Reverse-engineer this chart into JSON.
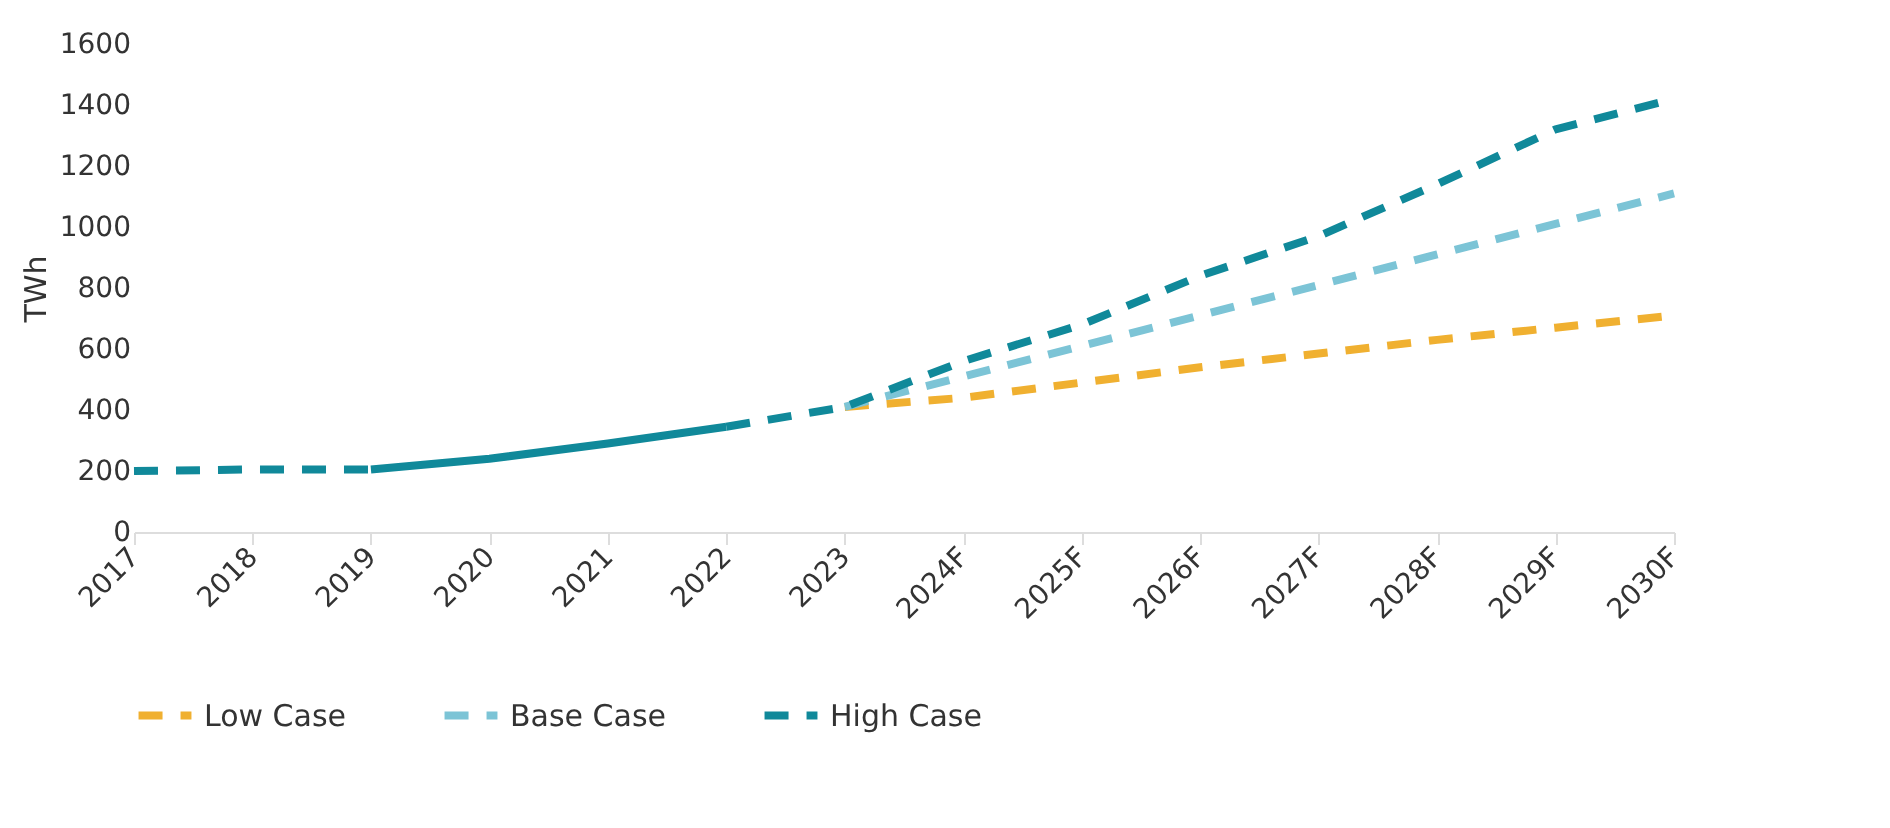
{
  "chart_data": {
    "type": "line",
    "ylabel": "TWh",
    "categories": [
      "2017",
      "2018",
      "2019",
      "2020",
      "2021",
      "2022",
      "2023",
      "2024F",
      "2025F",
      "2026F",
      "2027F",
      "2028F",
      "2029F",
      "2030F"
    ],
    "ylim": [
      0,
      1600
    ],
    "yticks": [
      0,
      200,
      400,
      600,
      800,
      1000,
      1200,
      1400,
      1600
    ],
    "grid": false,
    "legend": "bottom",
    "marker": "none",
    "series": [
      {
        "color": "#10899a",
        "line_style": "solid",
        "values": [
          null,
          null,
          205,
          240,
          290,
          345,
          null,
          null,
          null,
          null,
          null,
          null,
          null,
          null
        ]
      },
      {
        "name": "Low Case",
        "color": "#f0b030",
        "line_style": "dashed",
        "values": [
          null,
          null,
          null,
          null,
          null,
          null,
          410,
          440,
          490,
          540,
          585,
          630,
          670,
          710
        ]
      },
      {
        "name": "Base Case",
        "color": "#7cc4d6",
        "line_style": "dashed",
        "values": [
          null,
          null,
          null,
          null,
          null,
          null,
          410,
          510,
          610,
          710,
          810,
          910,
          1010,
          1110
        ]
      },
      {
        "name": "High Case",
        "color": "#10899a",
        "line_style": "dashed",
        "values": [
          200,
          205,
          205,
          null,
          null,
          345,
          410,
          560,
          680,
          840,
          970,
          1140,
          1320,
          1420
        ]
      }
    ]
  }
}
